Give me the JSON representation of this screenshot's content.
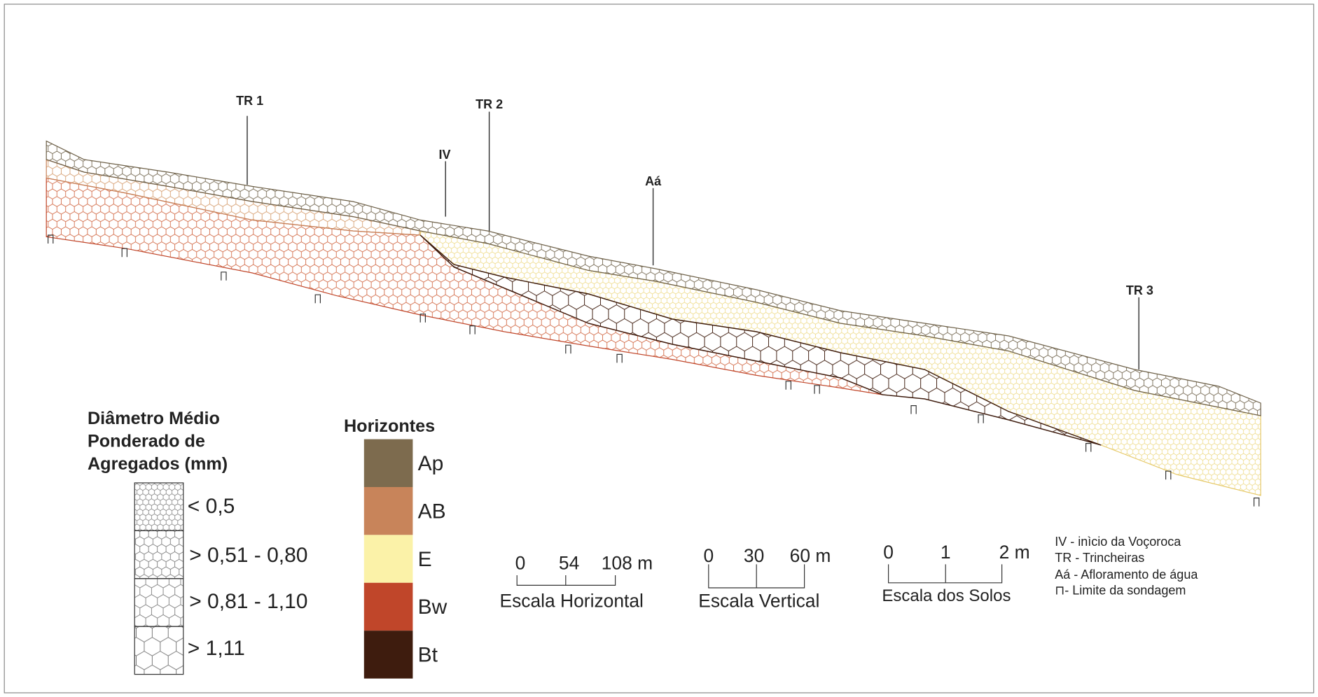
{
  "profile_markers": [
    "TR 1",
    "TR 2",
    "IV",
    "Aá",
    "TR 3"
  ],
  "aggregate_legend": {
    "title": [
      "Diâmetro Médio",
      "Ponderado de",
      "Agregados (mm)"
    ],
    "classes": [
      "< 0,5",
      "> 0,51 - 0,80",
      "> 0,81 - 1,10",
      "> 1,11"
    ]
  },
  "horizons_legend": {
    "title": "Horizontes",
    "horizons": [
      {
        "name": "Ap",
        "color": "#7d6b4e"
      },
      {
        "name": "AB",
        "color": "#c8845a"
      },
      {
        "name": "E",
        "color": "#fbf2a8"
      },
      {
        "name": "Bw",
        "color": "#c0462a"
      },
      {
        "name": "Bt",
        "color": "#3e1c0e"
      }
    ]
  },
  "scales": [
    {
      "ticks": [
        "0",
        "54",
        "108 m"
      ],
      "caption": "Escala Horizontal"
    },
    {
      "ticks": [
        "0",
        "30",
        "60 m"
      ],
      "caption": "Escala Vertical"
    },
    {
      "ticks": [
        "0",
        "1",
        "2 m"
      ],
      "caption": "Escala dos Solos"
    }
  ],
  "notes": [
    "IV - inìcio da Voçoroca",
    "TR - Trincheiras",
    "Aá - Afloramento de água",
    "⊓- Limite da sondagem"
  ]
}
